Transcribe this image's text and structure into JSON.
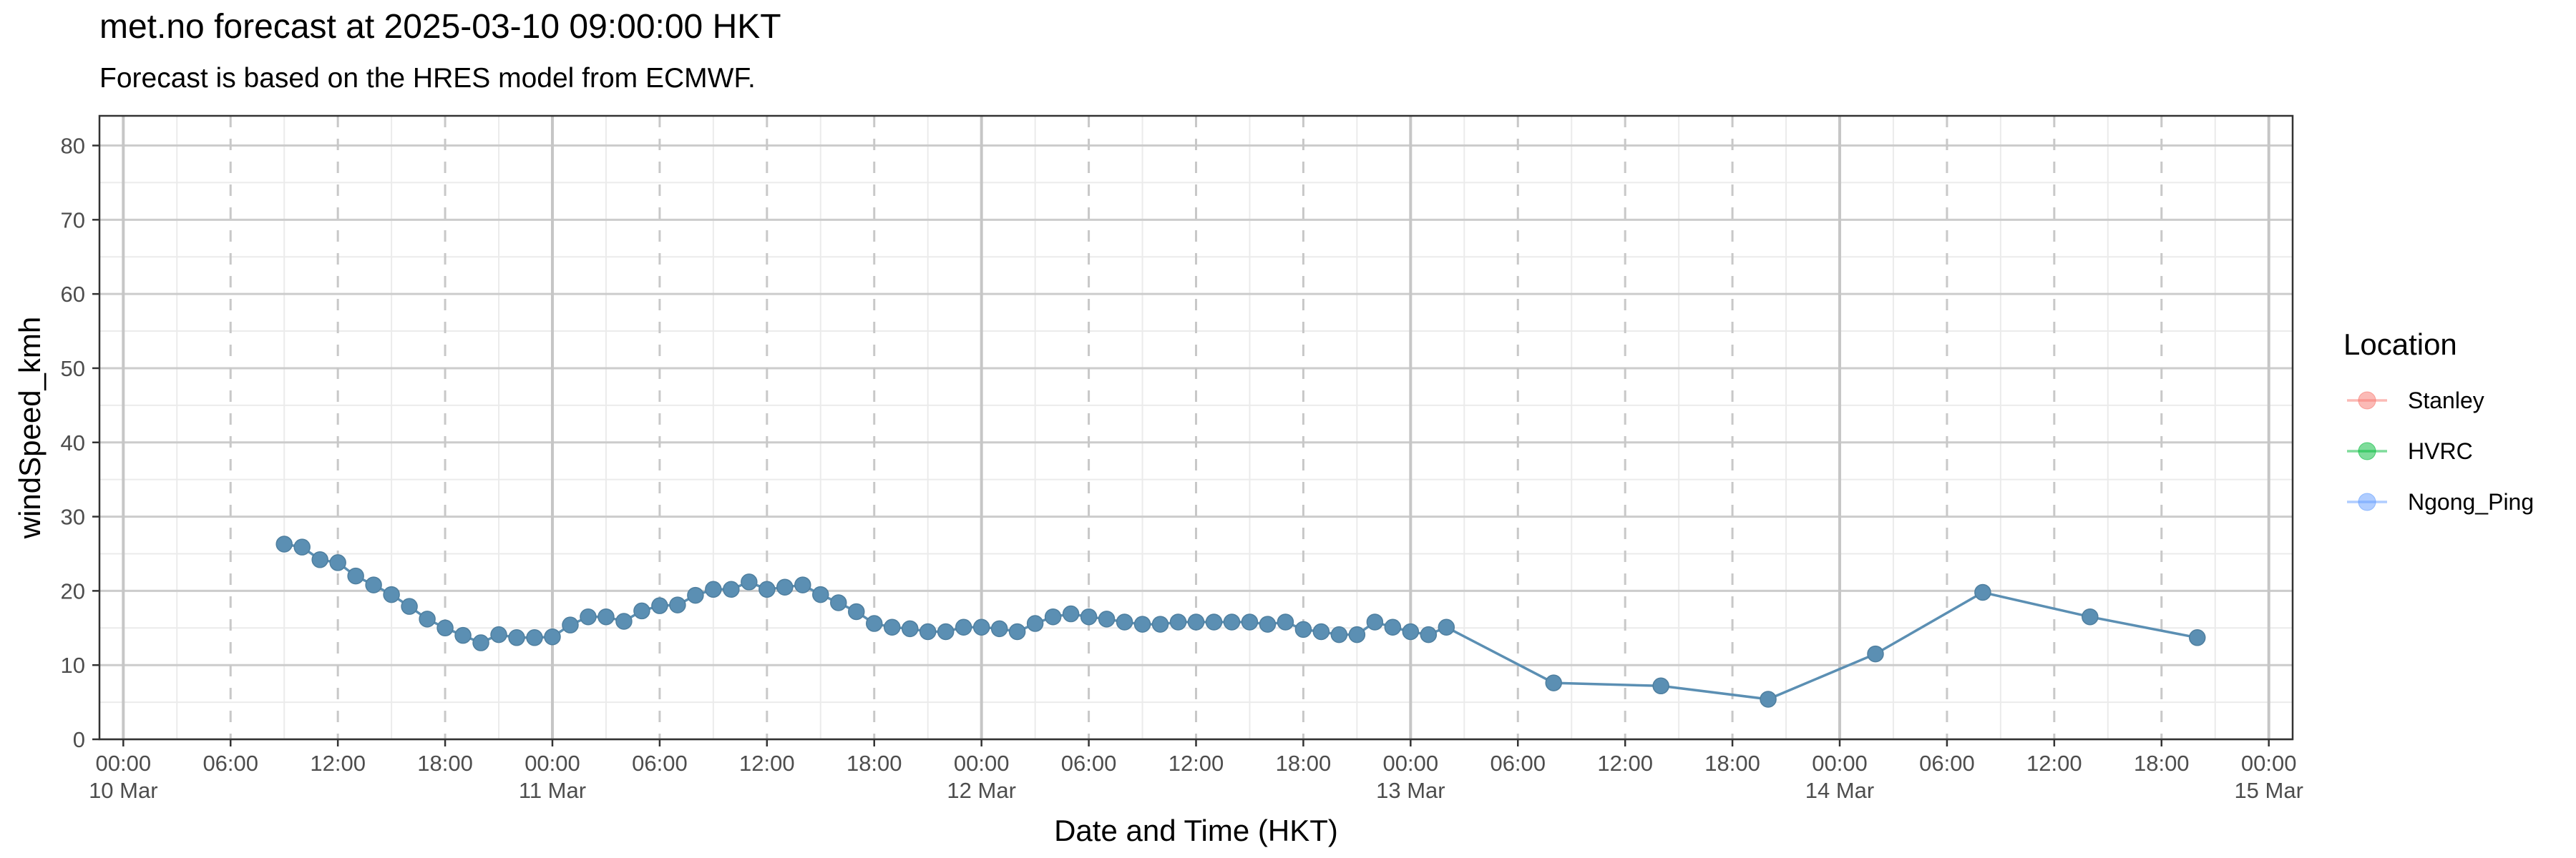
{
  "chart_data": {
    "type": "line",
    "title": "met.no forecast at 2025-03-10 09:00:00 HKT",
    "subtitle": "Forecast is based on the HRES model from ECMWF.",
    "xlabel": "Date and Time (HKT)",
    "ylabel": "windSpeed_kmh",
    "xlim": [
      "2025-03-09T22:40",
      "2025-03-15T01:20"
    ],
    "ylim": [
      0,
      84
    ],
    "x_ticks": [
      {
        "x": "2025-03-10T00:00",
        "time": "00:00",
        "date": "10 Mar"
      },
      {
        "x": "2025-03-10T06:00",
        "time": "06:00",
        "date": ""
      },
      {
        "x": "2025-03-10T12:00",
        "time": "12:00",
        "date": ""
      },
      {
        "x": "2025-03-10T18:00",
        "time": "18:00",
        "date": ""
      },
      {
        "x": "2025-03-11T00:00",
        "time": "00:00",
        "date": "11 Mar"
      },
      {
        "x": "2025-03-11T06:00",
        "time": "06:00",
        "date": ""
      },
      {
        "x": "2025-03-11T12:00",
        "time": "12:00",
        "date": ""
      },
      {
        "x": "2025-03-11T18:00",
        "time": "18:00",
        "date": ""
      },
      {
        "x": "2025-03-12T00:00",
        "time": "00:00",
        "date": "12 Mar"
      },
      {
        "x": "2025-03-12T06:00",
        "time": "06:00",
        "date": ""
      },
      {
        "x": "2025-03-12T12:00",
        "time": "12:00",
        "date": ""
      },
      {
        "x": "2025-03-12T18:00",
        "time": "18:00",
        "date": ""
      },
      {
        "x": "2025-03-13T00:00",
        "time": "00:00",
        "date": "13 Mar"
      },
      {
        "x": "2025-03-13T06:00",
        "time": "06:00",
        "date": ""
      },
      {
        "x": "2025-03-13T12:00",
        "time": "12:00",
        "date": ""
      },
      {
        "x": "2025-03-13T18:00",
        "time": "18:00",
        "date": ""
      },
      {
        "x": "2025-03-14T00:00",
        "time": "00:00",
        "date": "14 Mar"
      },
      {
        "x": "2025-03-14T06:00",
        "time": "06:00",
        "date": ""
      },
      {
        "x": "2025-03-14T12:00",
        "time": "12:00",
        "date": ""
      },
      {
        "x": "2025-03-14T18:00",
        "time": "18:00",
        "date": ""
      },
      {
        "x": "2025-03-15T00:00",
        "time": "00:00",
        "date": "15 Mar"
      }
    ],
    "y_ticks": [
      0,
      10,
      20,
      30,
      40,
      50,
      60,
      70,
      80
    ],
    "grid": true,
    "legend": {
      "title": "Location",
      "position": "right",
      "entries": [
        {
          "name": "Stanley",
          "color": "#F8766D"
        },
        {
          "name": "HVRC",
          "color": "#00BA38"
        },
        {
          "name": "Ngong_Ping",
          "color": "#619CFF"
        }
      ]
    },
    "series": [
      {
        "name": "Ngong_Ping",
        "color": "#5b8fb3",
        "points": [
          {
            "x": "2025-03-10T09:00",
            "y": 26.3
          },
          {
            "x": "2025-03-10T10:00",
            "y": 25.9
          },
          {
            "x": "2025-03-10T11:00",
            "y": 24.2
          },
          {
            "x": "2025-03-10T12:00",
            "y": 23.8
          },
          {
            "x": "2025-03-10T13:00",
            "y": 22.0
          },
          {
            "x": "2025-03-10T14:00",
            "y": 20.8
          },
          {
            "x": "2025-03-10T15:00",
            "y": 19.5
          },
          {
            "x": "2025-03-10T16:00",
            "y": 17.9
          },
          {
            "x": "2025-03-10T17:00",
            "y": 16.2
          },
          {
            "x": "2025-03-10T18:00",
            "y": 15.0
          },
          {
            "x": "2025-03-10T19:00",
            "y": 14.0
          },
          {
            "x": "2025-03-10T20:00",
            "y": 13.0
          },
          {
            "x": "2025-03-10T21:00",
            "y": 14.1
          },
          {
            "x": "2025-03-10T22:00",
            "y": 13.7
          },
          {
            "x": "2025-03-10T23:00",
            "y": 13.7
          },
          {
            "x": "2025-03-11T00:00",
            "y": 13.8
          },
          {
            "x": "2025-03-11T01:00",
            "y": 15.4
          },
          {
            "x": "2025-03-11T02:00",
            "y": 16.5
          },
          {
            "x": "2025-03-11T03:00",
            "y": 16.5
          },
          {
            "x": "2025-03-11T04:00",
            "y": 15.9
          },
          {
            "x": "2025-03-11T05:00",
            "y": 17.3
          },
          {
            "x": "2025-03-11T06:00",
            "y": 18.0
          },
          {
            "x": "2025-03-11T07:00",
            "y": 18.1
          },
          {
            "x": "2025-03-11T08:00",
            "y": 19.4
          },
          {
            "x": "2025-03-11T09:00",
            "y": 20.2
          },
          {
            "x": "2025-03-11T10:00",
            "y": 20.2
          },
          {
            "x": "2025-03-11T11:00",
            "y": 21.2
          },
          {
            "x": "2025-03-11T12:00",
            "y": 20.2
          },
          {
            "x": "2025-03-11T13:00",
            "y": 20.5
          },
          {
            "x": "2025-03-11T14:00",
            "y": 20.8
          },
          {
            "x": "2025-03-11T15:00",
            "y": 19.5
          },
          {
            "x": "2025-03-11T16:00",
            "y": 18.4
          },
          {
            "x": "2025-03-11T17:00",
            "y": 17.2
          },
          {
            "x": "2025-03-11T18:00",
            "y": 15.6
          },
          {
            "x": "2025-03-11T19:00",
            "y": 15.1
          },
          {
            "x": "2025-03-11T20:00",
            "y": 14.9
          },
          {
            "x": "2025-03-11T21:00",
            "y": 14.5
          },
          {
            "x": "2025-03-11T22:00",
            "y": 14.5
          },
          {
            "x": "2025-03-11T23:00",
            "y": 15.1
          },
          {
            "x": "2025-03-12T00:00",
            "y": 15.1
          },
          {
            "x": "2025-03-12T01:00",
            "y": 14.9
          },
          {
            "x": "2025-03-12T02:00",
            "y": 14.5
          },
          {
            "x": "2025-03-12T03:00",
            "y": 15.6
          },
          {
            "x": "2025-03-12T04:00",
            "y": 16.5
          },
          {
            "x": "2025-03-12T05:00",
            "y": 16.9
          },
          {
            "x": "2025-03-12T06:00",
            "y": 16.5
          },
          {
            "x": "2025-03-12T07:00",
            "y": 16.2
          },
          {
            "x": "2025-03-12T08:00",
            "y": 15.8
          },
          {
            "x": "2025-03-12T09:00",
            "y": 15.5
          },
          {
            "x": "2025-03-12T10:00",
            "y": 15.5
          },
          {
            "x": "2025-03-12T11:00",
            "y": 15.8
          },
          {
            "x": "2025-03-12T12:00",
            "y": 15.8
          },
          {
            "x": "2025-03-12T13:00",
            "y": 15.8
          },
          {
            "x": "2025-03-12T14:00",
            "y": 15.8
          },
          {
            "x": "2025-03-12T15:00",
            "y": 15.8
          },
          {
            "x": "2025-03-12T16:00",
            "y": 15.5
          },
          {
            "x": "2025-03-12T17:00",
            "y": 15.8
          },
          {
            "x": "2025-03-12T18:00",
            "y": 14.8
          },
          {
            "x": "2025-03-12T19:00",
            "y": 14.5
          },
          {
            "x": "2025-03-12T20:00",
            "y": 14.1
          },
          {
            "x": "2025-03-12T21:00",
            "y": 14.1
          },
          {
            "x": "2025-03-12T22:00",
            "y": 15.8
          },
          {
            "x": "2025-03-12T23:00",
            "y": 15.1
          },
          {
            "x": "2025-03-13T00:00",
            "y": 14.5
          },
          {
            "x": "2025-03-13T01:00",
            "y": 14.1
          },
          {
            "x": "2025-03-13T02:00",
            "y": 15.1
          },
          {
            "x": "2025-03-13T08:00",
            "y": 7.6
          },
          {
            "x": "2025-03-13T14:00",
            "y": 7.2
          },
          {
            "x": "2025-03-13T20:00",
            "y": 5.4
          },
          {
            "x": "2025-03-14T02:00",
            "y": 11.5
          },
          {
            "x": "2025-03-14T08:00",
            "y": 19.8
          },
          {
            "x": "2025-03-14T14:00",
            "y": 16.5
          },
          {
            "x": "2025-03-14T20:00",
            "y": 13.7
          }
        ]
      }
    ]
  }
}
